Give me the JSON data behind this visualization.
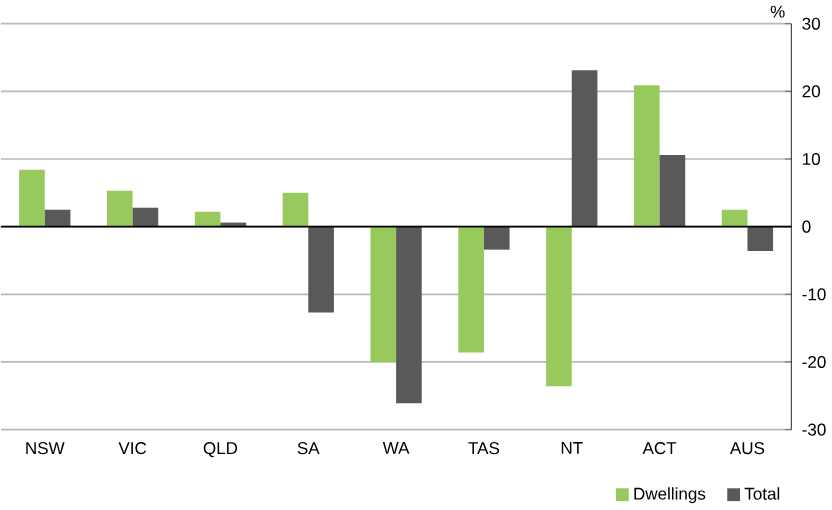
{
  "chart_data": {
    "type": "bar",
    "ylabel": "%",
    "categories": [
      "NSW",
      "VIC",
      "QLD",
      "SA",
      "WA",
      "TAS",
      "NT",
      "ACT",
      "AUS"
    ],
    "series": [
      {
        "name": "Dwellings",
        "color": "#97c95c",
        "values": [
          8.4,
          5.3,
          2.2,
          5.0,
          -20.0,
          -18.6,
          -23.6,
          20.9,
          2.5
        ]
      },
      {
        "name": "Total",
        "color": "#595959",
        "values": [
          2.5,
          2.8,
          0.6,
          -12.7,
          -26.1,
          -3.4,
          23.1,
          10.6,
          -3.6
        ]
      }
    ],
    "ylim": [
      -30,
      30
    ],
    "yticks": [
      -30,
      -20,
      -10,
      0,
      10,
      20,
      30
    ],
    "grid": "y",
    "legend": "bottom right"
  }
}
